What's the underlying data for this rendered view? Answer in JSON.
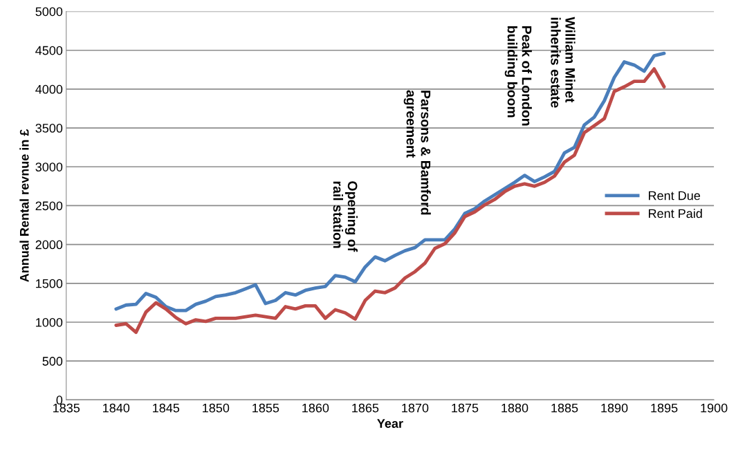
{
  "chart_data": {
    "type": "line",
    "xlabel": "Year",
    "ylabel": "Annual Rental revnue in £",
    "x": [
      1840,
      1841,
      1842,
      1843,
      1844,
      1845,
      1846,
      1847,
      1848,
      1849,
      1850,
      1851,
      1852,
      1853,
      1854,
      1855,
      1856,
      1857,
      1858,
      1859,
      1860,
      1861,
      1862,
      1863,
      1864,
      1865,
      1866,
      1867,
      1868,
      1869,
      1870,
      1871,
      1872,
      1873,
      1874,
      1875,
      1876,
      1877,
      1878,
      1879,
      1880,
      1881,
      1882,
      1883,
      1884,
      1885,
      1886,
      1887,
      1888,
      1889,
      1890,
      1891,
      1892,
      1893,
      1894,
      1895
    ],
    "series": [
      {
        "name": "Rent Due",
        "color": "#4a7ebb",
        "values": [
          1170,
          1220,
          1230,
          1370,
          1320,
          1200,
          1150,
          1150,
          1230,
          1270,
          1330,
          1350,
          1380,
          1430,
          1480,
          1240,
          1280,
          1380,
          1350,
          1410,
          1440,
          1460,
          1600,
          1580,
          1520,
          1710,
          1840,
          1790,
          1860,
          1920,
          1960,
          2060,
          2060,
          2060,
          2200,
          2400,
          2460,
          2560,
          2640,
          2720,
          2800,
          2890,
          2810,
          2870,
          2940,
          3180,
          3250,
          3540,
          3640,
          3850,
          4150,
          4350,
          4310,
          4230,
          4430,
          4460
        ]
      },
      {
        "name": "Rent Paid",
        "color": "#be4b48",
        "values": [
          960,
          980,
          870,
          1130,
          1250,
          1170,
          1060,
          980,
          1030,
          1010,
          1050,
          1050,
          1050,
          1070,
          1090,
          1070,
          1050,
          1200,
          1170,
          1210,
          1210,
          1050,
          1160,
          1120,
          1040,
          1280,
          1400,
          1380,
          1440,
          1570,
          1650,
          1760,
          1950,
          2010,
          2150,
          2360,
          2420,
          2510,
          2580,
          2680,
          2750,
          2780,
          2750,
          2800,
          2880,
          3060,
          3150,
          3440,
          3530,
          3620,
          3970,
          4030,
          4100,
          4100,
          4260,
          4030
        ]
      }
    ],
    "xlim": [
      1835,
      1900
    ],
    "xticks": [
      1835,
      1840,
      1845,
      1850,
      1855,
      1860,
      1865,
      1870,
      1875,
      1880,
      1885,
      1890,
      1895,
      1900
    ],
    "ylim": [
      0,
      5000
    ],
    "yticks": [
      0,
      500,
      1000,
      1500,
      2000,
      2500,
      3000,
      3500,
      4000,
      4500,
      5000
    ],
    "grid": "y",
    "legend": "right",
    "marker": "none",
    "line_style": "solid",
    "annotations": [
      "Opening of\nrail station",
      "Parsons & Bamford\nagreement",
      "Peak of London\nbuilding boom",
      "William Minet\ninherits estate"
    ]
  }
}
